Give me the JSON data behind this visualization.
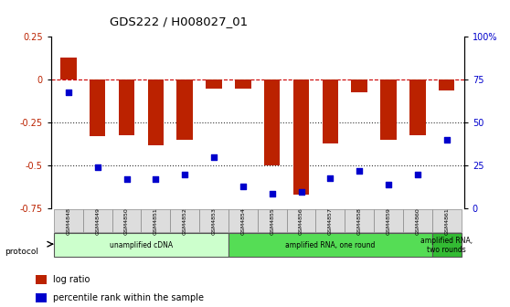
{
  "title": "GDS222 / H008027_01",
  "samples": [
    "GSM4848",
    "GSM4849",
    "GSM4850",
    "GSM4851",
    "GSM4852",
    "GSM4853",
    "GSM4854",
    "GSM4855",
    "GSM4856",
    "GSM4857",
    "GSM4858",
    "GSM4859",
    "GSM4860",
    "GSM4861"
  ],
  "log_ratio": [
    0.13,
    -0.33,
    -0.32,
    -0.38,
    -0.35,
    -0.05,
    -0.05,
    -0.5,
    -0.67,
    -0.37,
    -0.07,
    -0.35,
    -0.32,
    -0.06
  ],
  "percentile_rank": [
    68,
    24,
    17,
    17,
    20,
    30,
    13,
    9,
    10,
    18,
    22,
    14,
    20,
    40
  ],
  "bar_color": "#bb2200",
  "dot_color": "#0000cc",
  "ylim_left": [
    -0.75,
    0.25
  ],
  "ylim_right": [
    0,
    100
  ],
  "hline_color": "#cc0000",
  "dotline_color": "#333333",
  "background_color": "#ffffff",
  "protocol_groups": [
    {
      "label": "unamplified cDNA",
      "start": 0,
      "end": 5,
      "color": "#ccffcc"
    },
    {
      "label": "amplified RNA, one round",
      "start": 6,
      "end": 12,
      "color": "#55dd55"
    },
    {
      "label": "amplified RNA,\ntwo rounds",
      "start": 13,
      "end": 13,
      "color": "#33bb33"
    }
  ],
  "yticks_left": [
    -0.75,
    -0.5,
    -0.25,
    0,
    0.25
  ],
  "yticks_right": [
    0,
    25,
    50,
    75,
    100
  ],
  "ytick_labels_right": [
    "0",
    "25",
    "50",
    "75",
    "100%"
  ],
  "legend_items": [
    {
      "color": "#bb2200",
      "label": "log ratio"
    },
    {
      "color": "#0000cc",
      "label": "percentile rank within the sample"
    }
  ]
}
